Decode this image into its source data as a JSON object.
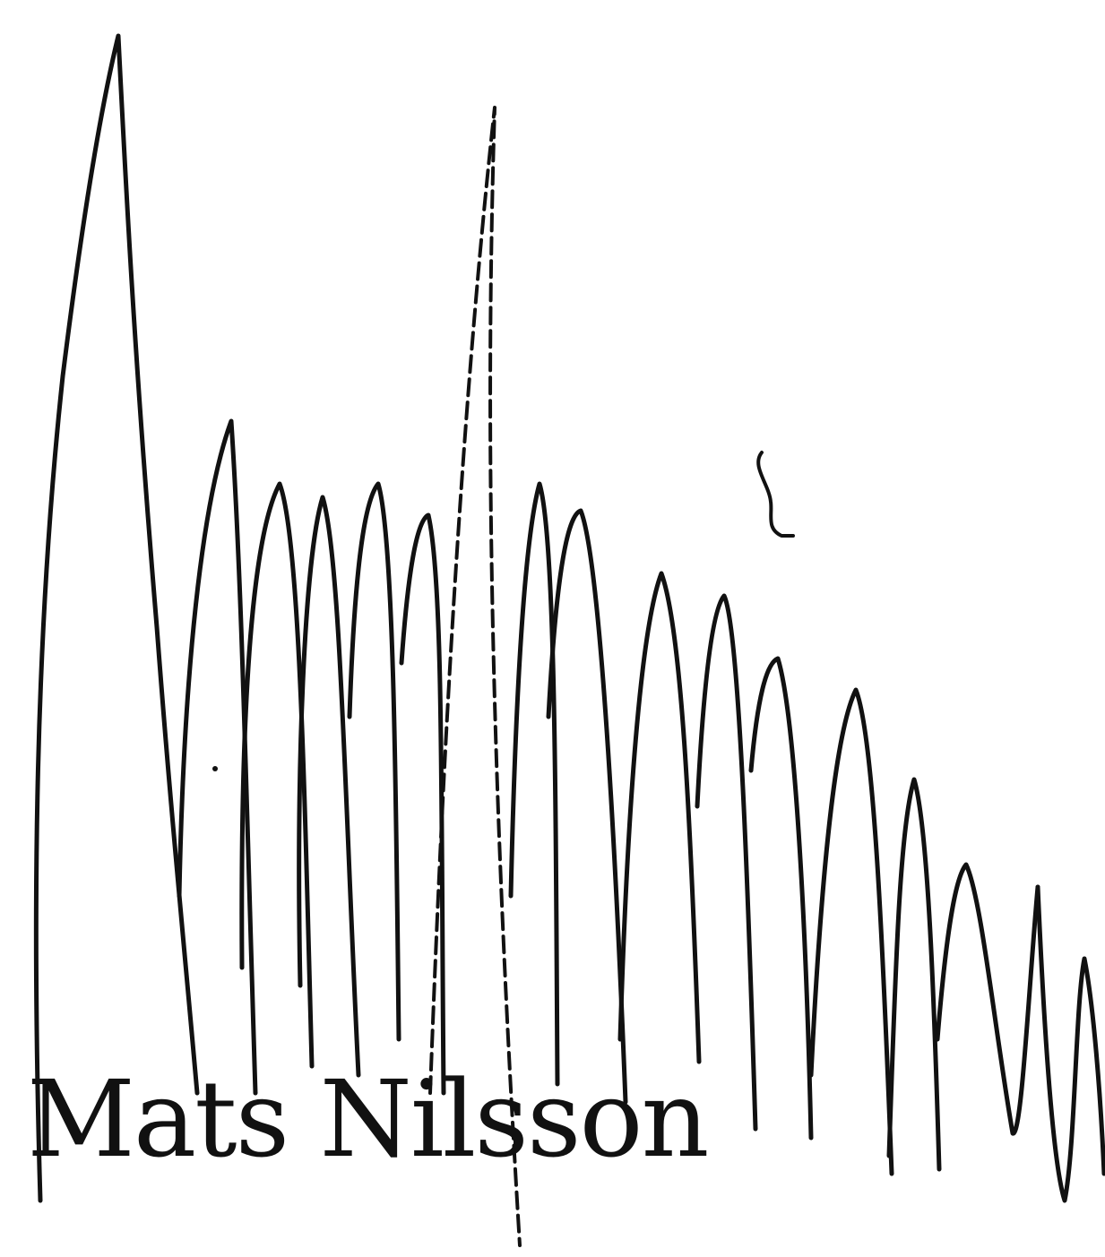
{
  "caption": {
    "name": "Mats Nilsson"
  },
  "colors": {
    "background": "#ffffff",
    "ink": "#111111"
  }
}
